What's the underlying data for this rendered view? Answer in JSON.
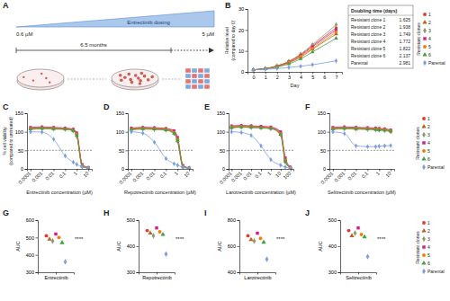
{
  "diagram": {
    "panel": "A",
    "dosing": "Entrectinib dosing",
    "start": "0.6 µM",
    "end": "5 µM",
    "duration": "6.5 months"
  },
  "chart_data": [
    {
      "panel": "B",
      "type": "line",
      "x_label": "Day",
      "y_label": [
        "Relative level",
        "(compared to day 0)"
      ],
      "x": [
        0,
        1,
        2,
        3,
        4,
        5,
        7
      ],
      "xlim": [
        -0.5,
        7.5
      ],
      "xticks": [
        0,
        1,
        2,
        3,
        4,
        5,
        6,
        7
      ],
      "ylim": [
        0,
        30
      ],
      "yticks": [
        0,
        10,
        20,
        30
      ],
      "legend_title": "Resistant clones",
      "table": {
        "title": "Doubling time (days)",
        "rows": [
          [
            "Resistant clone 1",
            1.625
          ],
          [
            "Resistant clone 2",
            1.938
          ],
          [
            "Resistant clone 3",
            1.749
          ],
          [
            "Resistant clone 4",
            1.772
          ],
          [
            "Resistant clone 5",
            1.822
          ],
          [
            "Resistant clone 6",
            2.137
          ],
          [
            "Parental",
            2.981
          ]
        ]
      },
      "series": [
        {
          "name": "1",
          "color": "#e53935",
          "marker": "circle",
          "values": [
            1,
            1.6,
            2.8,
            4.9,
            8.2,
            12.5,
            21.0
          ]
        },
        {
          "name": "2",
          "color": "#b5651d",
          "marker": "triangle",
          "values": [
            1,
            1.5,
            2.5,
            4.3,
            7.0,
            10.8,
            18.0
          ]
        },
        {
          "name": "3",
          "color": "#8d9b6a",
          "marker": "diamond",
          "values": [
            1,
            1.6,
            2.9,
            5.1,
            8.5,
            13.0,
            22.5
          ]
        },
        {
          "name": "4",
          "color": "#d81b8a",
          "marker": "square",
          "values": [
            1,
            1.5,
            2.7,
            4.7,
            7.8,
            12.0,
            20.0
          ]
        },
        {
          "name": "5",
          "color": "#f57c00",
          "marker": "circle",
          "values": [
            1,
            1.5,
            2.6,
            4.5,
            7.4,
            11.2,
            19.0
          ]
        },
        {
          "name": "6",
          "color": "#43a047",
          "marker": "triangle",
          "values": [
            1,
            1.4,
            2.3,
            3.8,
            6.2,
            9.5,
            16.0
          ]
        },
        {
          "name": "Parental",
          "color": "#7b9ee0",
          "marker": "diamond",
          "values": [
            1,
            1.2,
            1.6,
            2.1,
            2.7,
            3.4,
            5.3
          ]
        }
      ]
    },
    {
      "panel": "C",
      "type": "line",
      "log": "x",
      "x_label": "Entrectinib concentration (µM)",
      "y_label": [
        "% cell viability",
        "(compared to untreated)"
      ],
      "x": [
        0.0001,
        0.001,
        0.01,
        0.1,
        0.5,
        1,
        3,
        10
      ],
      "xlim": [
        5e-05,
        20
      ],
      "xticks": [
        0.0001,
        0.001,
        0.01,
        0.1,
        1,
        10
      ],
      "ylim": [
        0,
        150
      ],
      "yticks": [
        0,
        50,
        100,
        150
      ],
      "hline": 50,
      "series": [
        {
          "name": "1",
          "color": "#e53935",
          "marker": "circle",
          "values": [
            108,
            110,
            109,
            108,
            104,
            92,
            8,
            3
          ]
        },
        {
          "name": "2",
          "color": "#b5651d",
          "marker": "triangle",
          "values": [
            110,
            112,
            110,
            109,
            106,
            95,
            10,
            3
          ]
        },
        {
          "name": "3",
          "color": "#8d9b6a",
          "marker": "diamond",
          "values": [
            106,
            108,
            107,
            106,
            102,
            88,
            6,
            2
          ]
        },
        {
          "name": "4",
          "color": "#d81b8a",
          "marker": "square",
          "values": [
            112,
            113,
            112,
            110,
            107,
            97,
            12,
            4
          ]
        },
        {
          "name": "5",
          "color": "#f57c00",
          "marker": "circle",
          "values": [
            109,
            111,
            110,
            108,
            105,
            93,
            9,
            3
          ]
        },
        {
          "name": "6",
          "color": "#43a047",
          "marker": "triangle",
          "values": [
            107,
            109,
            108,
            107,
            103,
            90,
            7,
            2
          ]
        },
        {
          "name": "Parental",
          "color": "#7b9ee0",
          "marker": "diamond",
          "values": [
            100,
            99,
            80,
            35,
            18,
            12,
            6,
            2
          ]
        }
      ]
    },
    {
      "panel": "D",
      "type": "line",
      "log": "x",
      "x_label": "Repotrectinib concentration (µM)",
      "x": [
        0.0001,
        0.001,
        0.01,
        0.1,
        0.5,
        1,
        3,
        10
      ],
      "xlim": [
        5e-05,
        20
      ],
      "xticks": [
        0.0001,
        0.001,
        0.01,
        0.1,
        1,
        10
      ],
      "ylim": [
        0,
        150
      ],
      "yticks": [
        0,
        50,
        100,
        150
      ],
      "hline": 50,
      "series": [
        {
          "name": "1",
          "color": "#e53935",
          "marker": "circle",
          "values": [
            107,
            109,
            108,
            106,
            98,
            78,
            6,
            2
          ]
        },
        {
          "name": "2",
          "color": "#b5651d",
          "marker": "triangle",
          "values": [
            109,
            111,
            110,
            108,
            101,
            82,
            8,
            3
          ]
        },
        {
          "name": "3",
          "color": "#8d9b6a",
          "marker": "diamond",
          "values": [
            105,
            107,
            106,
            104,
            95,
            74,
            5,
            2
          ]
        },
        {
          "name": "4",
          "color": "#d81b8a",
          "marker": "square",
          "values": [
            110,
            112,
            111,
            109,
            103,
            85,
            9,
            3
          ]
        },
        {
          "name": "5",
          "color": "#f57c00",
          "marker": "circle",
          "values": [
            108,
            110,
            109,
            107,
            99,
            80,
            7,
            2
          ]
        },
        {
          "name": "6",
          "color": "#43a047",
          "marker": "triangle",
          "values": [
            106,
            108,
            107,
            105,
            96,
            76,
            5,
            2
          ]
        },
        {
          "name": "Parental",
          "color": "#7b9ee0",
          "marker": "diamond",
          "values": [
            100,
            96,
            72,
            28,
            14,
            10,
            5,
            2
          ]
        }
      ]
    },
    {
      "panel": "E",
      "type": "line",
      "log": "x",
      "x_label": "Larotrectinib concentration (µM)",
      "x": [
        0.0001,
        0.001,
        0.01,
        0.1,
        1,
        10,
        30,
        100
      ],
      "xlim": [
        5e-05,
        200
      ],
      "xticks": [
        0.0001,
        0.001,
        0.01,
        0.1,
        1,
        10,
        100
      ],
      "ylim": [
        0,
        150
      ],
      "yticks": [
        0,
        50,
        100,
        150
      ],
      "hline": 50,
      "series": [
        {
          "name": "1",
          "color": "#e53935",
          "marker": "circle",
          "values": [
            112,
            114,
            113,
            112,
            110,
            96,
            22,
            3
          ]
        },
        {
          "name": "2",
          "color": "#b5651d",
          "marker": "triangle",
          "values": [
            114,
            116,
            115,
            113,
            111,
            98,
            26,
            4
          ]
        },
        {
          "name": "3",
          "color": "#8d9b6a",
          "marker": "diamond",
          "values": [
            110,
            112,
            111,
            110,
            108,
            92,
            18,
            2
          ]
        },
        {
          "name": "4",
          "color": "#d81b8a",
          "marker": "square",
          "values": [
            116,
            117,
            116,
            115,
            113,
            100,
            30,
            5
          ]
        },
        {
          "name": "5",
          "color": "#f57c00",
          "marker": "circle",
          "values": [
            113,
            115,
            114,
            112,
            110,
            95,
            24,
            3
          ]
        },
        {
          "name": "6",
          "color": "#43a047",
          "marker": "triangle",
          "values": [
            111,
            113,
            112,
            111,
            109,
            93,
            20,
            2
          ]
        },
        {
          "name": "Parental",
          "color": "#7b9ee0",
          "marker": "diamond",
          "values": [
            100,
            98,
            90,
            62,
            25,
            10,
            5,
            2
          ]
        }
      ]
    },
    {
      "panel": "F",
      "type": "line",
      "log": "x",
      "x_label": "Selitrectinib concentration (µM)",
      "legend_title": "Resistant clones",
      "x": [
        0.0001,
        0.001,
        0.01,
        0.1,
        0.5,
        1,
        3,
        10
      ],
      "xlim": [
        5e-05,
        20
      ],
      "xticks": [
        0.0001,
        0.001,
        0.01,
        0.1,
        1,
        10
      ],
      "ylim": [
        0,
        150
      ],
      "yticks": [
        0,
        50,
        100,
        150
      ],
      "hline": 50,
      "series": [
        {
          "name": "1",
          "color": "#e53935",
          "marker": "circle",
          "values": [
            108,
            110,
            109,
            108,
            107,
            106,
            105,
            102
          ]
        },
        {
          "name": "2",
          "color": "#b5651d",
          "marker": "triangle",
          "values": [
            110,
            112,
            111,
            110,
            109,
            108,
            107,
            104
          ]
        },
        {
          "name": "3",
          "color": "#8d9b6a",
          "marker": "diamond",
          "values": [
            106,
            108,
            107,
            106,
            105,
            104,
            103,
            100
          ]
        },
        {
          "name": "4",
          "color": "#d81b8a",
          "marker": "square",
          "values": [
            112,
            113,
            112,
            111,
            110,
            109,
            108,
            105
          ]
        },
        {
          "name": "5",
          "color": "#f57c00",
          "marker": "circle",
          "values": [
            109,
            111,
            110,
            109,
            108,
            107,
            106,
            103
          ]
        },
        {
          "name": "6",
          "color": "#43a047",
          "marker": "triangle",
          "values": [
            107,
            109,
            108,
            107,
            106,
            105,
            104,
            101
          ]
        },
        {
          "name": "Parental",
          "color": "#7b9ee0",
          "marker": "diamond",
          "values": [
            100,
            95,
            62,
            60,
            60,
            61,
            62,
            63
          ]
        }
      ]
    },
    {
      "panel": "G",
      "type": "dot",
      "y_label": "AUC",
      "categories": [
        "Entrectinib"
      ],
      "ylim": [
        300,
        600
      ],
      "yticks": [
        300,
        400,
        500,
        600
      ],
      "annotations": [
        "****"
      ],
      "series": [
        {
          "name": "1",
          "color": "#e53935",
          "marker": "circle",
          "values": [
            510
          ]
        },
        {
          "name": "2",
          "color": "#b5651d",
          "marker": "triangle",
          "values": [
            490
          ]
        },
        {
          "name": "3",
          "color": "#8d9b6a",
          "marker": "diamond",
          "values": [
            480
          ]
        },
        {
          "name": "4",
          "color": "#d81b8a",
          "marker": "square",
          "values": [
            520
          ]
        },
        {
          "name": "5",
          "color": "#f57c00",
          "marker": "circle",
          "values": [
            500
          ]
        },
        {
          "name": "6",
          "color": "#43a047",
          "marker": "triangle",
          "values": [
            470
          ]
        },
        {
          "name": "Parental",
          "color": "#7b9ee0",
          "marker": "diamond",
          "values": [
            360
          ]
        }
      ]
    },
    {
      "panel": "H",
      "type": "dot",
      "y_label": "AUC",
      "categories": [
        "Repotrectinib"
      ],
      "ylim": [
        300,
        500
      ],
      "yticks": [
        300,
        400,
        500
      ],
      "annotations": [
        "****"
      ],
      "series": [
        {
          "name": "1",
          "color": "#e53935",
          "marker": "circle",
          "values": [
            460
          ]
        },
        {
          "name": "2",
          "color": "#b5651d",
          "marker": "triangle",
          "values": [
            450
          ]
        },
        {
          "name": "3",
          "color": "#8d9b6a",
          "marker": "diamond",
          "values": [
            440
          ]
        },
        {
          "name": "4",
          "color": "#d81b8a",
          "marker": "square",
          "values": [
            470
          ]
        },
        {
          "name": "5",
          "color": "#f57c00",
          "marker": "circle",
          "values": [
            455
          ]
        },
        {
          "name": "6",
          "color": "#43a047",
          "marker": "triangle",
          "values": [
            445
          ]
        },
        {
          "name": "Parental",
          "color": "#7b9ee0",
          "marker": "diamond",
          "values": [
            370
          ]
        }
      ]
    },
    {
      "panel": "I",
      "type": "dot",
      "y_label": "AUC",
      "categories": [
        "Larotrectinib"
      ],
      "ylim": [
        400,
        800
      ],
      "yticks": [
        400,
        600,
        800
      ],
      "annotations": [
        "****"
      ],
      "series": [
        {
          "name": "1",
          "color": "#e53935",
          "marker": "circle",
          "values": [
            680
          ]
        },
        {
          "name": "2",
          "color": "#b5651d",
          "marker": "triangle",
          "values": [
            650
          ]
        },
        {
          "name": "3",
          "color": "#8d9b6a",
          "marker": "diamond",
          "values": [
            640
          ]
        },
        {
          "name": "4",
          "color": "#d81b8a",
          "marker": "square",
          "values": [
            700
          ]
        },
        {
          "name": "5",
          "color": "#f57c00",
          "marker": "circle",
          "values": [
            660
          ]
        },
        {
          "name": "6",
          "color": "#43a047",
          "marker": "triangle",
          "values": [
            630
          ]
        },
        {
          "name": "Parental",
          "color": "#7b9ee0",
          "marker": "diamond",
          "values": [
            500
          ]
        }
      ]
    },
    {
      "panel": "J",
      "type": "dot",
      "y_label": "AUC",
      "categories": [
        "Selitrectinib"
      ],
      "ylim": [
        300,
        500
      ],
      "yticks": [
        300,
        400,
        500
      ],
      "annotations": [
        "****"
      ],
      "legend_title": "Resistant clones",
      "series": [
        {
          "name": "1",
          "color": "#e53935",
          "marker": "circle",
          "values": [
            460
          ]
        },
        {
          "name": "2",
          "color": "#b5651d",
          "marker": "triangle",
          "values": [
            440
          ]
        },
        {
          "name": "3",
          "color": "#8d9b6a",
          "marker": "diamond",
          "values": [
            450
          ]
        },
        {
          "name": "4",
          "color": "#d81b8a",
          "marker": "square",
          "values": [
            470
          ]
        },
        {
          "name": "5",
          "color": "#f57c00",
          "marker": "circle",
          "values": [
            445
          ]
        },
        {
          "name": "6",
          "color": "#43a047",
          "marker": "triangle",
          "values": [
            435
          ]
        },
        {
          "name": "Parental",
          "color": "#7b9ee0",
          "marker": "diamond",
          "values": [
            360
          ]
        }
      ]
    }
  ]
}
